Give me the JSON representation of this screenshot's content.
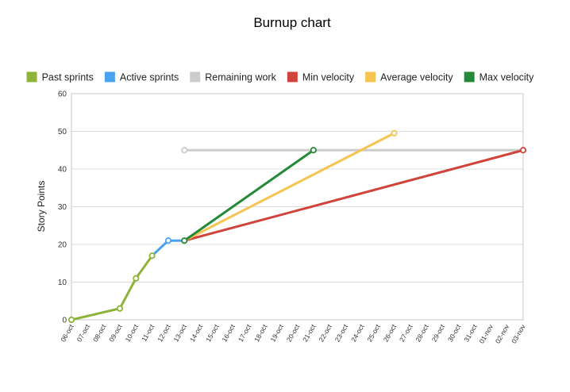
{
  "chart_data": {
    "type": "line",
    "title": "Burnup chart",
    "ylabel": "Story Points",
    "xlabel": "",
    "ylim": [
      0,
      60
    ],
    "yticks": [
      0,
      10,
      20,
      30,
      40,
      50,
      60
    ],
    "grid": true,
    "legend_position": "top",
    "categories": [
      "06-oct",
      "07-oct",
      "08-oct",
      "09-oct",
      "10-oct",
      "11-oct",
      "12-oct",
      "13-oct",
      "14-oct",
      "15-oct",
      "16-oct",
      "17-oct",
      "18-oct",
      "19-oct",
      "20-oct",
      "21-oct",
      "22-oct",
      "23-oct",
      "24-oct",
      "25-oct",
      "26-oct",
      "27-oct",
      "28-oct",
      "29-oct",
      "30-oct",
      "31-oct",
      "01-nov",
      "02-nov",
      "03-nov"
    ],
    "series": [
      {
        "name": "Past sprints",
        "color": "#8db33a",
        "points": [
          [
            "06-oct",
            0
          ],
          [
            "09-oct",
            3
          ],
          [
            "10-oct",
            11
          ],
          [
            "11-oct",
            17
          ]
        ],
        "markers": [
          "06-oct",
          "09-oct",
          "10-oct",
          "11-oct"
        ]
      },
      {
        "name": "Active sprints",
        "color": "#4aa3f0",
        "points": [
          [
            "11-oct",
            17
          ],
          [
            "12-oct",
            21
          ],
          [
            "13-oct",
            21
          ]
        ],
        "markers": [
          "12-oct"
        ]
      },
      {
        "name": "Remaining work",
        "color": "#cccccc",
        "points": [
          [
            "13-oct",
            45
          ],
          [
            "03-nov",
            45
          ]
        ],
        "markers": [
          "13-oct"
        ]
      },
      {
        "name": "Min velocity",
        "color": "#d0433b",
        "points": [
          [
            "13-oct",
            21
          ],
          [
            "03-nov",
            45
          ]
        ],
        "markers": [
          "03-nov"
        ]
      },
      {
        "name": "Average velocity",
        "color": "#f5c451",
        "points": [
          [
            "13-oct",
            21
          ],
          [
            "26-oct",
            49.5
          ]
        ],
        "markers": [
          "26-oct"
        ]
      },
      {
        "name": "Max velocity",
        "color": "#248a39",
        "points": [
          [
            "13-oct",
            21
          ],
          [
            "21-oct",
            45
          ]
        ],
        "markers": [
          "13-oct",
          "21-oct"
        ]
      }
    ]
  }
}
